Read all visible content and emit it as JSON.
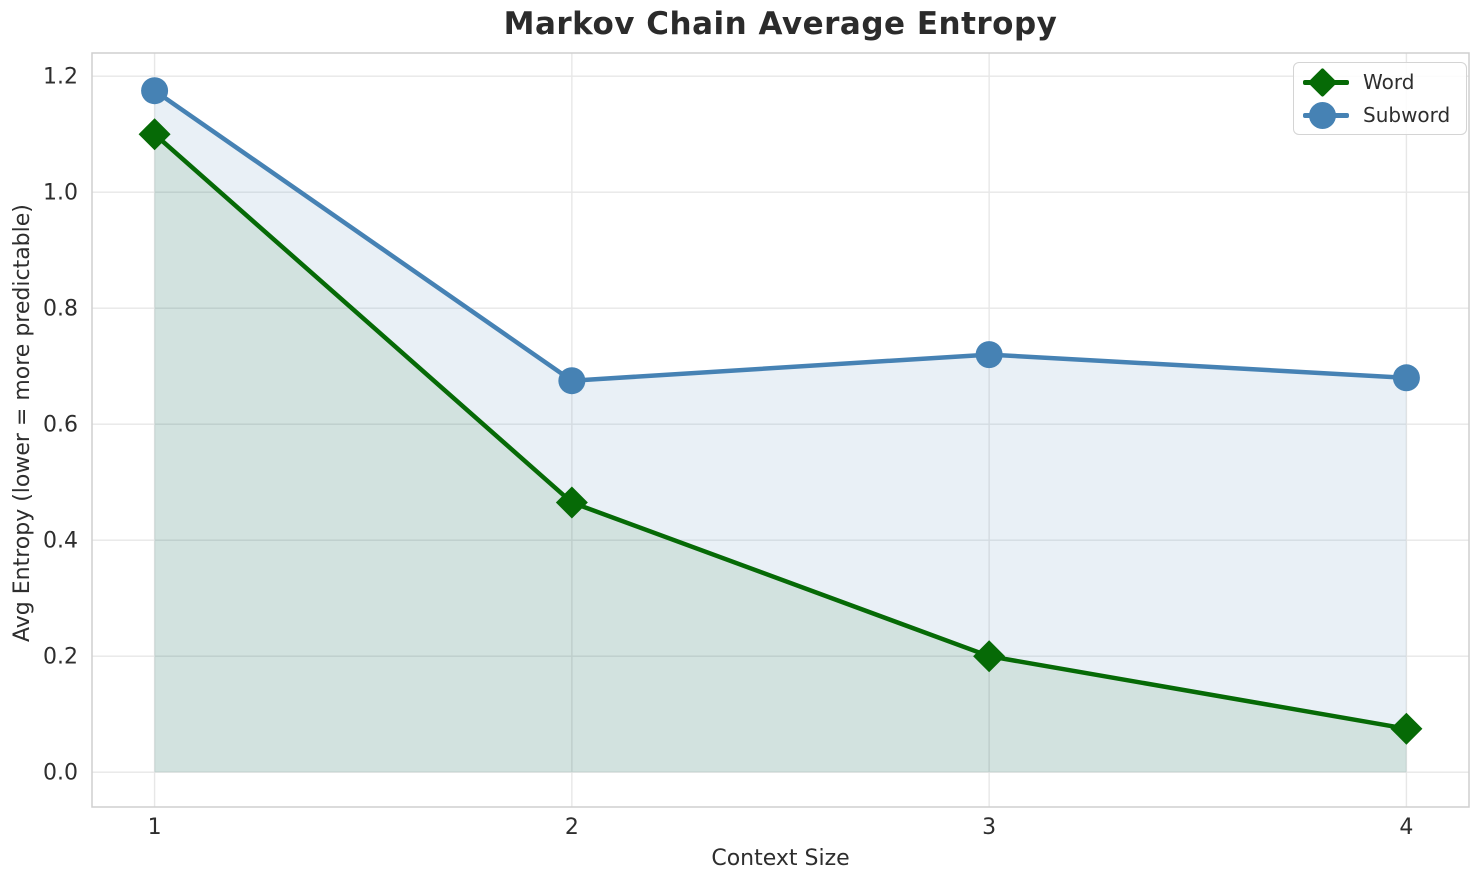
{
  "figure": {
    "title": "Markov Chain Average Entropy",
    "xlabel": "Context Size",
    "ylabel": "Avg Entropy (lower = more predictable)"
  },
  "chart_data": {
    "type": "line",
    "title": "Markov Chain Average Entropy",
    "xlabel": "Context Size",
    "ylabel": "Avg Entropy (lower = more predictable)",
    "x": [
      1,
      2,
      3,
      4
    ],
    "series": [
      {
        "name": "Word",
        "values": [
          1.1,
          0.465,
          0.2,
          0.075
        ],
        "color": "#066a06",
        "marker": "diamond",
        "fill": true,
        "fill_color": "rgba(0,100,0,0.10)"
      },
      {
        "name": "Subword",
        "values": [
          1.175,
          0.675,
          0.72,
          0.68
        ],
        "color": "#4682b4",
        "marker": "circle",
        "fill": true,
        "fill_color": "rgba(70,130,180,0.12)"
      }
    ],
    "xticks": [
      1,
      2,
      3,
      4
    ],
    "xticklabels": [
      "1",
      "2",
      "3",
      "4"
    ],
    "yticks": [
      0.0,
      0.2,
      0.4,
      0.6,
      0.8,
      1.0,
      1.2
    ],
    "yticklabels": [
      "0.0",
      "0.2",
      "0.4",
      "0.6",
      "0.8",
      "1.0",
      "1.2"
    ],
    "xlim": [
      0.85,
      4.15
    ],
    "ylim": [
      -0.06,
      1.24
    ],
    "grid": true,
    "legend_position": "upper right",
    "fill_baseline": 0.0
  },
  "style": {
    "grid_color": "#e7e7e7",
    "spine_color": "#cfcfcf",
    "tick_text_color": "#2e2e2e",
    "title_color": "#2b2b2b",
    "background_color": "#ffffff"
  }
}
